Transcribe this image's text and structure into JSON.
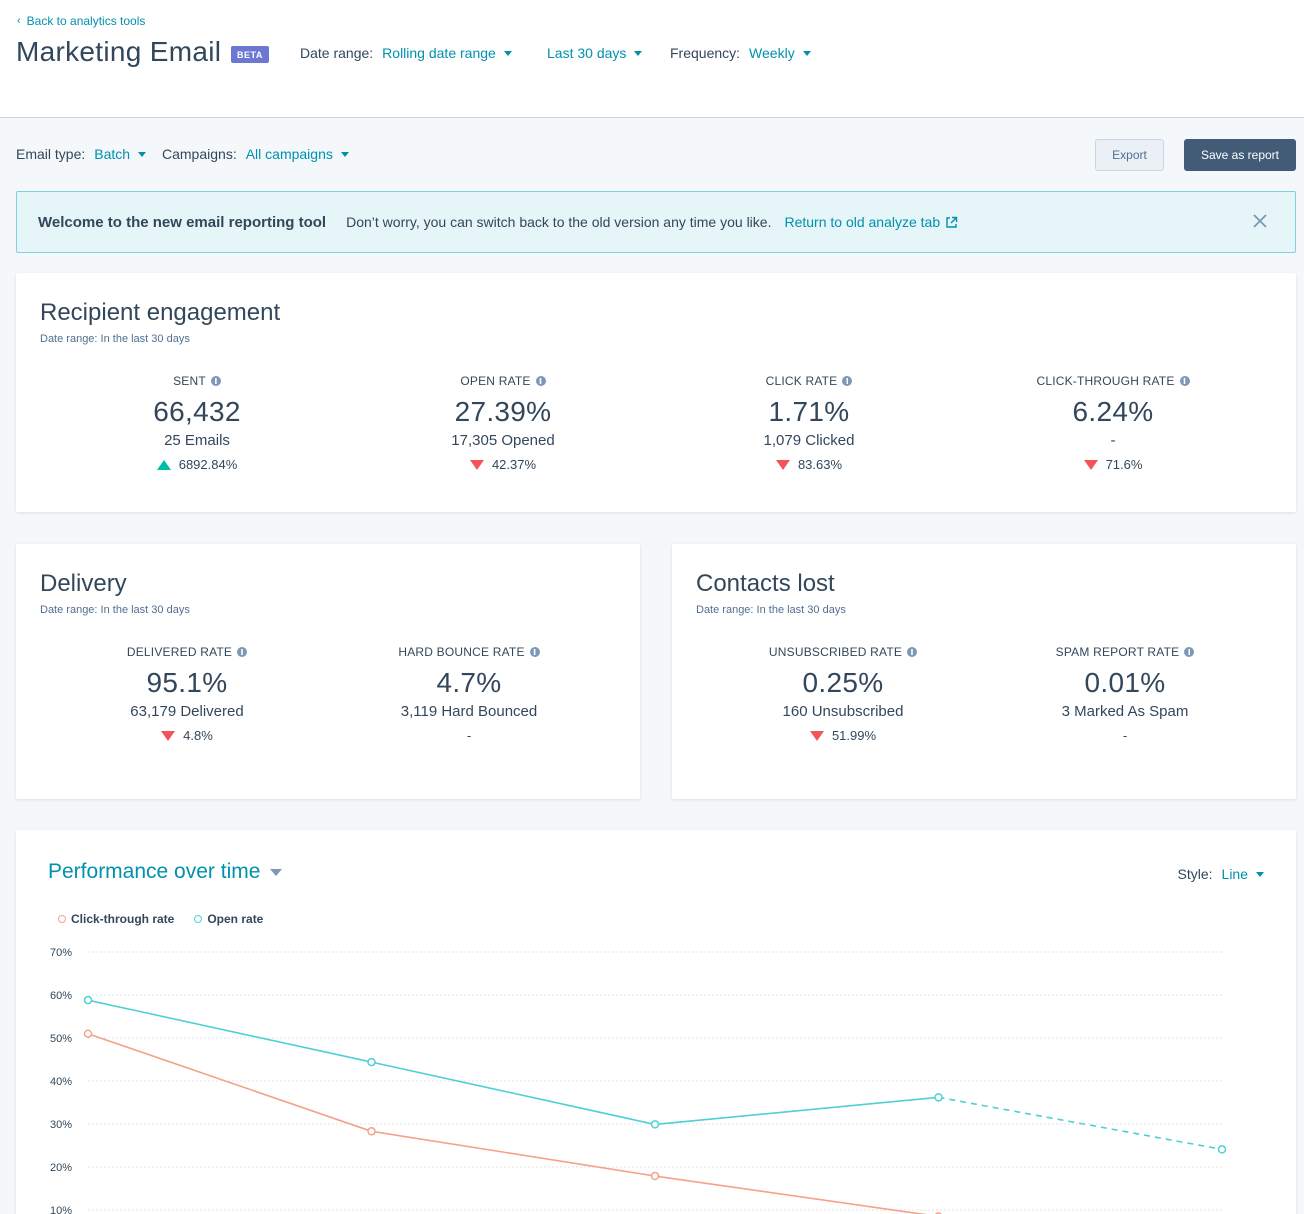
{
  "header": {
    "back_label": "Back to analytics tools",
    "title": "Marketing Email",
    "badge": "BETA",
    "date_range_label": "Date range:",
    "date_range_value": "Rolling date range",
    "period_value": "Last 30 days",
    "frequency_label": "Frequency:",
    "frequency_value": "Weekly"
  },
  "subfilters": {
    "email_type_label": "Email type:",
    "email_type_value": "Batch",
    "campaigns_label": "Campaigns:",
    "campaigns_value": "All campaigns",
    "export_label": "Export",
    "save_label": "Save as report"
  },
  "banner": {
    "title": "Welcome to the new email reporting tool",
    "text": "Don’t worry, you can switch back to the old version any time you like.",
    "link": "Return to old analyze tab"
  },
  "engagement": {
    "title": "Recipient engagement",
    "subtitle": "Date range:  In the last 30 days",
    "metrics": [
      {
        "label": "SENT",
        "value": "66,432",
        "detail": "25 Emails",
        "change": "6892.84%",
        "direction": "up"
      },
      {
        "label": "OPEN RATE",
        "value": "27.39%",
        "detail": "17,305 Opened",
        "change": "42.37%",
        "direction": "down"
      },
      {
        "label": "CLICK RATE",
        "value": "1.71%",
        "detail": "1,079 Clicked",
        "change": "83.63%",
        "direction": "down"
      },
      {
        "label": "CLICK-THROUGH RATE",
        "value": "6.24%",
        "detail": "-",
        "change": "71.6%",
        "direction": "down"
      }
    ]
  },
  "delivery": {
    "title": "Delivery",
    "subtitle": "Date range:  In the last 30 days",
    "metrics": [
      {
        "label": "DELIVERED RATE",
        "value": "95.1%",
        "detail": "63,179 Delivered",
        "change": "4.8%",
        "direction": "down"
      },
      {
        "label": "HARD BOUNCE RATE",
        "value": "4.7%",
        "detail": "3,119 Hard Bounced",
        "change": "-"
      }
    ]
  },
  "contacts_lost": {
    "title": "Contacts lost",
    "subtitle": "Date range:  In the last 30 days",
    "metrics": [
      {
        "label": "UNSUBSCRIBED RATE",
        "value": "0.25%",
        "detail": "160 Unsubscribed",
        "change": "51.99%",
        "direction": "down"
      },
      {
        "label": "SPAM REPORT RATE",
        "value": "0.01%",
        "detail": "3 Marked As Spam",
        "change": "-"
      }
    ]
  },
  "performance": {
    "title": "Performance over time",
    "style_label": "Style:",
    "style_value": "Line"
  },
  "colors": {
    "accent": "#0091ae",
    "open_rate": "#4fd0d3",
    "click_through": "#f5a18a",
    "up": "#00bda5",
    "down": "#f2545b"
  },
  "chart_data": {
    "type": "line",
    "x": [
      1,
      2,
      3,
      4,
      5
    ],
    "yticks": [
      "70%",
      "60%",
      "50%",
      "40%",
      "30%",
      "20%",
      "10%"
    ],
    "ylim": [
      0,
      70
    ],
    "series": [
      {
        "name": "Click-through rate",
        "values": [
          51,
          28.3,
          17.9,
          8.5,
          null
        ]
      },
      {
        "name": "Open rate",
        "values": [
          58.8,
          44.4,
          29.9,
          36.2,
          24.1
        ],
        "dashed_from": 3
      }
    ]
  }
}
